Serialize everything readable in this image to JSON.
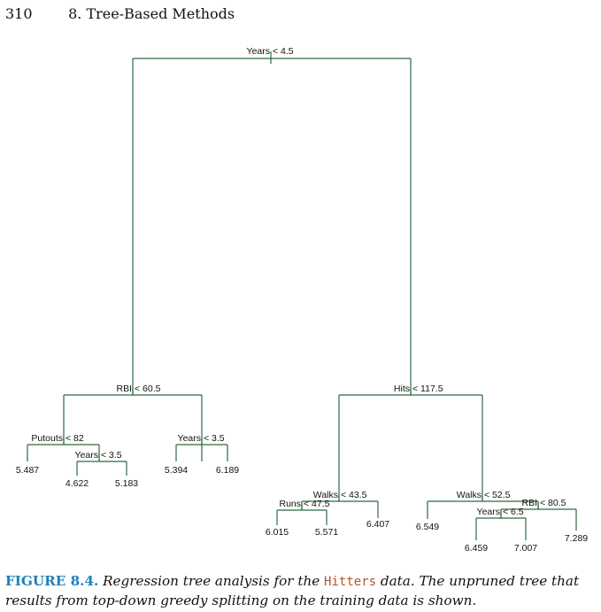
{
  "header": {
    "page_number": "310",
    "chapter_title": "8.  Tree-Based Methods"
  },
  "tree": {
    "splits": [
      {
        "id": "root",
        "variable": "Years",
        "threshold": "4.5",
        "label": "Years < 4.5"
      },
      {
        "id": "L",
        "variable": "RBI",
        "threshold": "60.5",
        "label": "RBI < 60.5"
      },
      {
        "id": "LL",
        "variable": "Putouts",
        "threshold": "82",
        "label": "Putouts < 82"
      },
      {
        "id": "LLR",
        "variable": "Years",
        "threshold": "3.5",
        "label": "Years < 3.5"
      },
      {
        "id": "LR",
        "variable": "Years",
        "threshold": "3.5",
        "label": "Years < 3.5"
      },
      {
        "id": "R",
        "variable": "Hits",
        "threshold": "117.5",
        "label": "Hits < 117.5"
      },
      {
        "id": "RL",
        "variable": "Walks",
        "threshold": "43.5",
        "label": "Walks < 43.5"
      },
      {
        "id": "RLL",
        "variable": "Runs",
        "threshold": "47.5",
        "label": "Runs < 47.5"
      },
      {
        "id": "RR",
        "variable": "Walks",
        "threshold": "52.5",
        "label": "Walks < 52.5"
      },
      {
        "id": "RRR",
        "variable": "RBI",
        "threshold": "80.5",
        "label": "RBI < 80.5"
      },
      {
        "id": "RRRL",
        "variable": "Years",
        "threshold": "6.5",
        "label": "Years < 6.5"
      }
    ],
    "leaves": [
      {
        "id": "LLL",
        "value": "5.487"
      },
      {
        "id": "LLRL",
        "value": "4.622"
      },
      {
        "id": "LLRR",
        "value": "5.183"
      },
      {
        "id": "LRL",
        "value": "5.394"
      },
      {
        "id": "LRR",
        "value": "6.189"
      },
      {
        "id": "RLLL",
        "value": "6.015"
      },
      {
        "id": "RLLR",
        "value": "5.571"
      },
      {
        "id": "RLR",
        "value": "6.407"
      },
      {
        "id": "RRL",
        "value": "6.549"
      },
      {
        "id": "RRRLL",
        "value": "6.459"
      },
      {
        "id": "RRRLR",
        "value": "7.007"
      },
      {
        "id": "RRRR",
        "value": "7.289"
      }
    ]
  },
  "caption": {
    "label": "FIGURE 8.4.",
    "text_before": " Regression tree analysis for the ",
    "dataset": "Hitters",
    "text_after": " data. The unpruned tree that results from top-down greedy splitting on the training data is shown."
  },
  "colors": {
    "tree_lines": "#2c6b3f",
    "figure_label": "#1e7fb8",
    "dataset_name": "#b0562a"
  }
}
